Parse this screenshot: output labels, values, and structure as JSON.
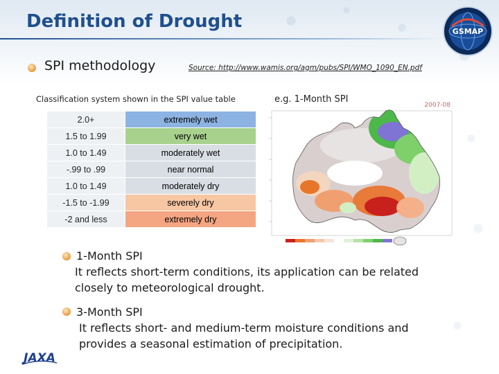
{
  "title": "Definition of Drought",
  "logo": {
    "text": "GSMAP"
  },
  "jaxa_logo": {
    "text": "JAXA"
  },
  "section": {
    "heading": "SPI methodology",
    "source": "Source: http://www.wamis.org/agm/pubs/SPI/WMO_1090_EN.pdf"
  },
  "table": {
    "caption": "Classification system shown in the SPI value table",
    "rows": [
      {
        "value": "2.0+",
        "label": "extremely wet",
        "color": "#8db3e2"
      },
      {
        "value": "1.5 to 1.99",
        "label": "very wet",
        "color": "#a9d18e"
      },
      {
        "value": "1.0 to 1.49",
        "label": "moderately wet",
        "color": "#d9dee4"
      },
      {
        "value": "-.99 to .99",
        "label": "near normal",
        "color": "#d9dee4"
      },
      {
        "value": "1.0 to  1.49",
        "label": "moderately dry",
        "color": "#d9dee4"
      },
      {
        "value": "-1.5 to -1.99",
        "label": "severely dry",
        "color": "#f7c6a3"
      },
      {
        "value": "-2 and less",
        "label": "extremely dry",
        "color": "#f4a582"
      }
    ]
  },
  "example": {
    "label": "e.g. 1-Month SPI",
    "date": "2007-08",
    "map_alt": "Australia 1-month SPI map"
  },
  "points": [
    {
      "title": "1-Month SPI",
      "lines": [
        "It reflects short-term conditions, its application can be related",
        "closely to meteorological drought."
      ]
    },
    {
      "title": "3-Month SPI",
      "lines": [
        "It reflects short- and medium-term moisture conditions and",
        "provides a seasonal estimation of precipitation."
      ]
    }
  ],
  "colors": {
    "title": "#1f4f8f",
    "bullet": "#e69a3c"
  }
}
